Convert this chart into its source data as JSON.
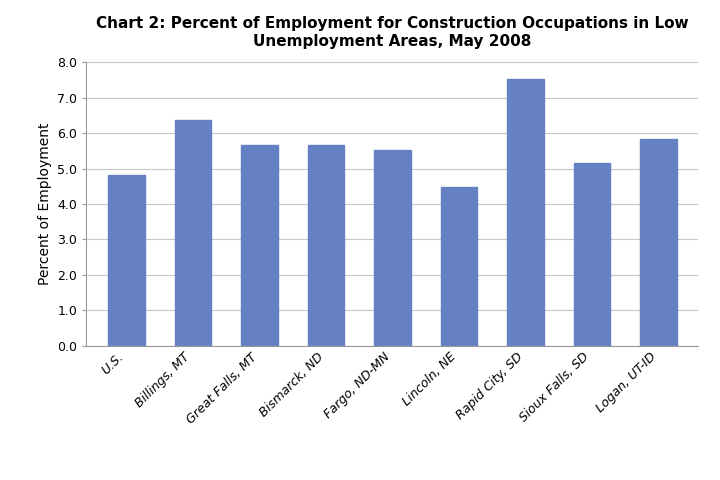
{
  "title": "Chart 2: Percent of Employment for Construction Occupations in Low\nUnemployment Areas, May 2008",
  "categories": [
    "U.S.",
    "Billings, MT",
    "Great Falls, MT",
    "Bismarck, ND",
    "Fargo, ND-MN",
    "Lincoln, NE",
    "Rapid City, SD",
    "Sioux Falls, SD",
    "Logan, UT-ID"
  ],
  "values": [
    4.83,
    6.37,
    5.67,
    5.67,
    5.53,
    4.47,
    7.53,
    5.17,
    5.83
  ],
  "bar_color": "#6680c4",
  "ylabel": "Percent of Employment",
  "ylim": [
    0.0,
    8.0
  ],
  "yticks": [
    0.0,
    1.0,
    2.0,
    3.0,
    4.0,
    5.0,
    6.0,
    7.0,
    8.0
  ],
  "title_fontsize": 11,
  "ylabel_fontsize": 10,
  "tick_fontsize": 9,
  "background_color": "#ffffff",
  "grid_color": "#c8c8c8"
}
